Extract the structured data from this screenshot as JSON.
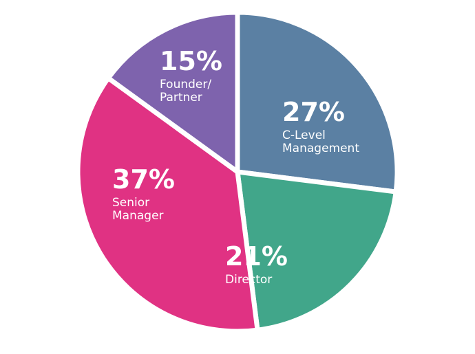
{
  "chart_data": {
    "type": "pie",
    "slices": [
      {
        "label": [
          "C-Level",
          "Management"
        ],
        "value": 27,
        "display": "27%",
        "color": "#5b80a3"
      },
      {
        "label": [
          "Director"
        ],
        "value": 21,
        "display": "21%",
        "color": "#41a68a"
      },
      {
        "label": [
          "Senior",
          "Manager"
        ],
        "value": 37,
        "display": "37%",
        "color": "#e03283"
      },
      {
        "label": [
          "Founder/",
          "Partner"
        ],
        "value": 15,
        "display": "15%",
        "color": "#7e63ad"
      }
    ]
  }
}
